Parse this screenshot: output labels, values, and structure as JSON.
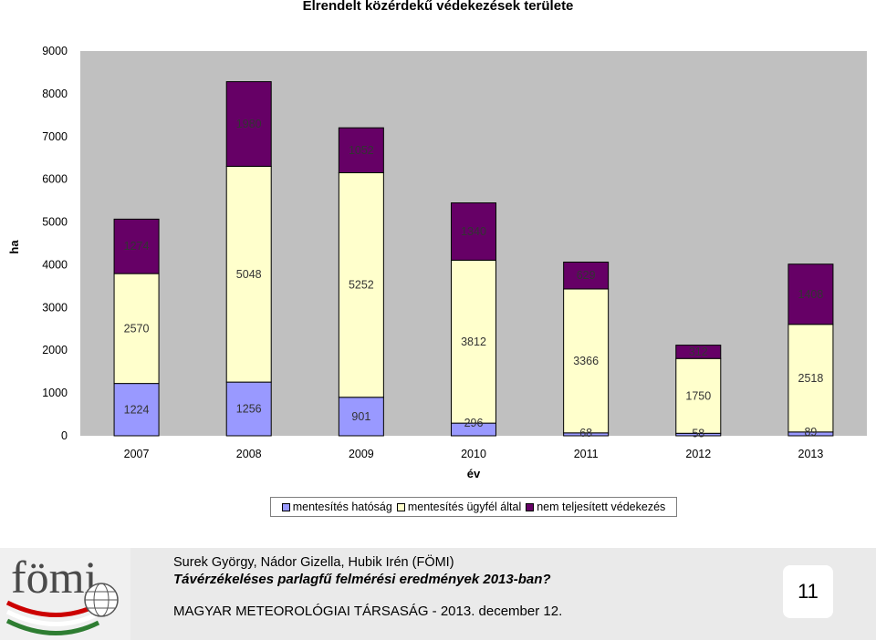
{
  "title": "Elrendelt közérdekű védekezések területe",
  "chart_data": {
    "type": "bar",
    "stacked": true,
    "categories": [
      "2007",
      "2008",
      "2009",
      "2010",
      "2011",
      "2012",
      "2013"
    ],
    "series": [
      {
        "name": "mentesítés hatóság",
        "values": [
          1224,
          1256,
          901,
          296,
          68,
          58,
          89
        ],
        "labels": [
          "1224",
          "1256",
          "901",
          "296",
          "68",
          "58",
          "89"
        ],
        "color": "#9999ff"
      },
      {
        "name": "mentesítés ügyfél által",
        "values": [
          2570,
          5048,
          5252,
          3812,
          3366,
          1750,
          2518
        ],
        "labels": [
          "2570",
          "5048",
          "5252",
          "3812",
          "3366",
          "1750",
          "2518"
        ],
        "color": "#ffffcc"
      },
      {
        "name": "nem teljesített védekezés",
        "values": [
          1274,
          1980,
          1052,
          1340,
          629,
          312,
          1408
        ],
        "labels": [
          "1274",
          "1980",
          "1052",
          "1340",
          "629",
          "312",
          "1408"
        ],
        "color": "#660066"
      }
    ],
    "ylabel": "ha",
    "xlabel": "év",
    "ylim": [
      0,
      9000
    ],
    "yticks": [
      "0",
      "1000",
      "2000",
      "3000",
      "4000",
      "5000",
      "6000",
      "7000",
      "8000",
      "9000"
    ],
    "plot_background": "#c0c0c0",
    "grid": false,
    "legend_position": "bottom"
  },
  "footer": {
    "authors": "Surek György, Nádor Gizella, Hubik Irén (FÖMI)",
    "talk_title": "Távérzékeléses parlagfű felmérési eredmények 2013-ban?",
    "event": "MAGYAR METEOROLÓGIAI TÁRSASÁG  - 2013. december 12.",
    "page_number": "11",
    "logo_text": "fömi",
    "logo_colors": [
      "#cc0000",
      "#ffffff",
      "#2e7d32"
    ]
  }
}
